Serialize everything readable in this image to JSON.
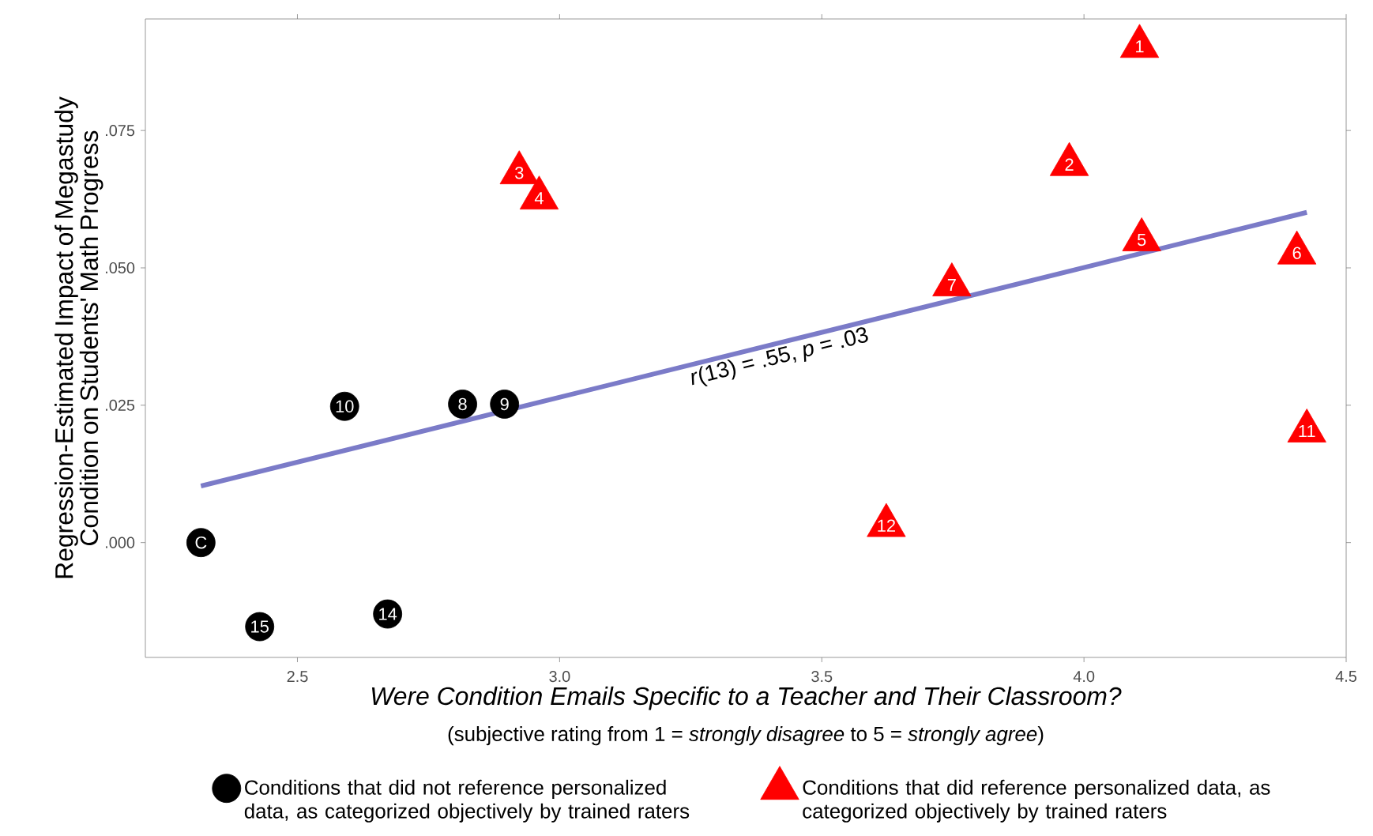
{
  "chart_data": {
    "type": "scatter",
    "xlabel": "Were Condition Emails Specific to a Teacher and Their Classroom?",
    "ylabel": "Regression-Estimated Impact of Megastudy Condition on Students' Math Progress",
    "xlim": [
      2.21,
      4.5
    ],
    "xticks": [
      2.5,
      {
        "value": 3.0,
        "label": "3.0"
      },
      3.5,
      {
        "value": 4.0,
        "label": "4.0"
      },
      4.5
    ],
    "ylim": [
      -0.0209,
      0.0953
    ],
    "yticks": [
      {
        "value": 0,
        "label": ".000"
      },
      {
        "value": 0.025,
        "label": ".025"
      },
      {
        "value": 0.05,
        "label": ".050"
      },
      {
        "value": 0.075,
        "label": ".075"
      }
    ],
    "grid": false,
    "legend": "bottom",
    "series": [
      {
        "name": "Conditions that did not reference personalized data, as categorized objectively by trained raters",
        "marker": "circle",
        "color": "#000000",
        "x": [
          2.316,
          2.428,
          2.672,
          2.59,
          2.815,
          2.895
        ],
        "values": [
          0.0,
          -0.0153,
          -0.013,
          0.0248,
          0.0252,
          0.0252
        ]
      },
      {
        "name": "Conditions that did reference personalized data, as categorized objectively by trained raters",
        "marker": "triangle",
        "color": "#ff0000",
        "x": [
          4.106,
          3.972,
          2.923,
          2.961,
          4.11,
          4.406,
          3.748,
          4.425,
          3.623
        ],
        "values": [
          0.0903,
          0.0688,
          0.0673,
          0.0627,
          0.0551,
          0.0527,
          0.0469,
          0.0203,
          0.0031
        ]
      },
      {
        "type": "line",
        "color": "#7b7bc8",
        "x": [
          2.316,
          4.425
        ],
        "values": [
          0.0103,
          0.0601
        ]
      }
    ],
    "annotations": [
      "(subjective rating from 1 = *strongly disagree* to 5 = *strongly agree*)",
      "*r*(13) = .55, *p* = .03",
      {
        "text": "C",
        "x": 2.316,
        "y": 0.0
      },
      {
        "text": "15",
        "x": 2.428,
        "y": -0.0153
      },
      {
        "text": "14",
        "x": 2.672,
        "y": -0.013
      },
      {
        "text": "10",
        "x": 2.59,
        "y": 0.0248
      },
      {
        "text": "8",
        "x": 2.815,
        "y": 0.0252
      },
      {
        "text": "9",
        "x": 2.895,
        "y": 0.0252
      },
      {
        "text": "1",
        "x": 4.106,
        "y": 0.0903
      },
      {
        "text": "2",
        "x": 3.972,
        "y": 0.0688
      },
      {
        "text": "3",
        "x": 2.923,
        "y": 0.0673
      },
      {
        "text": "4",
        "x": 2.961,
        "y": 0.0627
      },
      {
        "text": "5",
        "x": 4.11,
        "y": 0.0551
      },
      {
        "text": "6",
        "x": 4.406,
        "y": 0.0527
      },
      {
        "text": "7",
        "x": 3.748,
        "y": 0.0469
      },
      {
        "text": "11",
        "x": 4.425,
        "y": 0.0203
      },
      {
        "text": "12",
        "x": 3.623,
        "y": 0.0031
      }
    ]
  }
}
